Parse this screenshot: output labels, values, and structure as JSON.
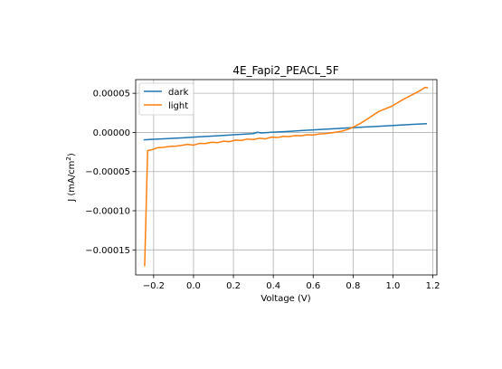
{
  "chart_data": {
    "type": "line",
    "title": "4E_Fapi2_PEACL_5F",
    "xlabel": "Voltage (V)",
    "ylabel_main": "J (mA/cm",
    "ylabel_sup": "2",
    "ylabel_end": ")",
    "xlim": [
      -0.29,
      1.22
    ],
    "ylim": [
      -0.000182,
      6.75e-05
    ],
    "grid": true,
    "legend_position": "upper left",
    "x_ticks": [
      -0.2,
      0.0,
      0.2,
      0.4,
      0.6,
      0.8,
      1.0,
      1.2
    ],
    "x_tick_labels": [
      "−0.2",
      "0.0",
      "0.2",
      "0.4",
      "0.6",
      "0.8",
      "1.0",
      "1.2"
    ],
    "y_ticks": [
      -0.00015,
      -0.0001,
      -5e-05,
      0.0,
      5e-05
    ],
    "y_tick_labels": [
      "−0.00015",
      "−0.00010",
      "−0.00005",
      "0.00000",
      "0.00005"
    ],
    "series": [
      {
        "name": "dark",
        "color": "#1f77b4",
        "x": [
          -0.25,
          -0.2,
          -0.15,
          -0.1,
          -0.05,
          0.0,
          0.05,
          0.1,
          0.15,
          0.2,
          0.25,
          0.3,
          0.32,
          0.34,
          0.4,
          0.45,
          0.5,
          0.55,
          0.6,
          0.65,
          0.7,
          0.75,
          0.8,
          0.85,
          0.9,
          0.95,
          1.0,
          1.05,
          1.1,
          1.17
        ],
        "y": [
          -9.5e-06,
          -8.8e-06,
          -8.2e-06,
          -7.5e-06,
          -6.8e-06,
          -6e-06,
          -5.2e-06,
          -4.5e-06,
          -3.8e-06,
          -3e-06,
          -2.2e-06,
          -1.5e-06,
          2e-07,
          -6e-07,
          3e-07,
          1e-06,
          1.7e-06,
          2.5e-06,
          3.3e-06,
          4e-06,
          4.7e-06,
          5.4e-06,
          6.1e-06,
          6.8e-06,
          7.5e-06,
          8.2e-06,
          8.9e-06,
          9.6e-06,
          1.03e-05,
          1.12e-05
        ]
      },
      {
        "name": "light",
        "color": "#ff7f0e",
        "x": [
          -0.245,
          -0.23,
          -0.21,
          -0.18,
          -0.15,
          -0.12,
          -0.09,
          -0.06,
          -0.03,
          0.0,
          0.03,
          0.06,
          0.09,
          0.12,
          0.15,
          0.18,
          0.21,
          0.24,
          0.27,
          0.3,
          0.33,
          0.36,
          0.39,
          0.42,
          0.45,
          0.48,
          0.51,
          0.54,
          0.57,
          0.6,
          0.63,
          0.66,
          0.69,
          0.72,
          0.75,
          0.78,
          0.81,
          0.84,
          0.87,
          0.9,
          0.93,
          0.96,
          0.99,
          1.02,
          1.05,
          1.08,
          1.11,
          1.14,
          1.16,
          1.175
        ],
        "y": [
          -0.000171,
          -2.32e-05,
          -2.22e-05,
          -1.95e-05,
          -1.9e-05,
          -1.78e-05,
          -1.75e-05,
          -1.65e-05,
          -1.52e-05,
          -1.62e-05,
          -1.4e-05,
          -1.42e-05,
          -1.25e-05,
          -1.3e-05,
          -1.12e-05,
          -1.18e-05,
          -9.8e-06,
          -1.02e-05,
          -8.5e-06,
          -9e-06,
          -7.5e-06,
          -8.2e-06,
          -6e-06,
          -6.5e-06,
          -5e-06,
          -5.3e-06,
          -4e-06,
          -4.3e-06,
          -3e-06,
          -3.3e-06,
          -2e-06,
          -1.5e-06,
          -5e-07,
          5e-07,
          2e-06,
          4.5e-06,
          8e-06,
          1.2e-05,
          1.7e-05,
          2.2e-05,
          2.7e-05,
          3e-05,
          3.3e-05,
          3.75e-05,
          4.2e-05,
          4.6e-05,
          5e-05,
          5.4e-05,
          5.75e-05,
          5.7e-05
        ]
      }
    ]
  }
}
